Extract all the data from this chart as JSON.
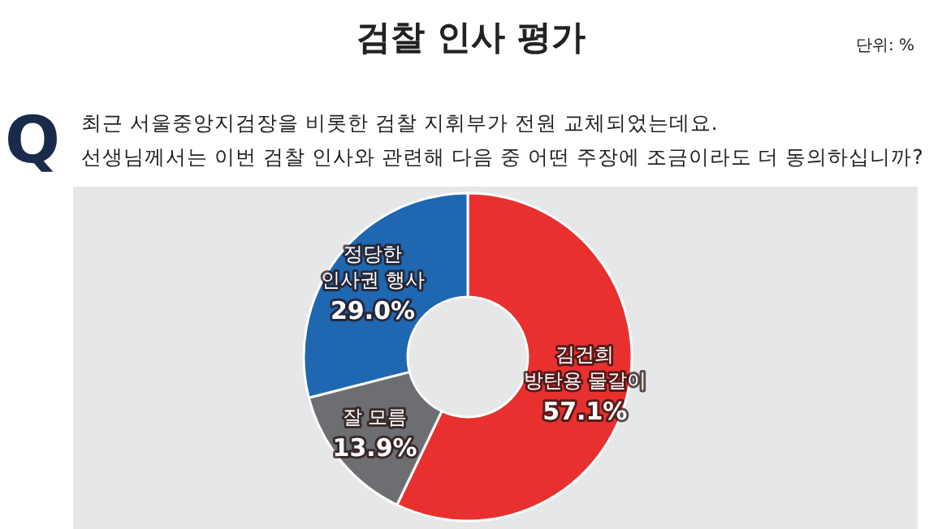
{
  "chart_data": {
    "type": "donut",
    "title": "검찰 인사 평가",
    "subtitle": "최근 서울중앙지검장을 비롯한 검찰 지휘부가 전원 교체되었는데요.\n선생님께서는 이번 검찰 인사와 관련해 다음 중 어떤 주장에 조금이라도 더 동의하십니까?",
    "annotations": [
      "단위: %",
      "Q"
    ],
    "categories": [
      "김건희\n방탄용 물갈이",
      "잘 모름",
      "정당한\n인사권 행사"
    ],
    "values": [
      57.1,
      13.9,
      29.0
    ],
    "colors": [
      "#e8312f",
      "#6d6e71",
      "#1f67b1"
    ],
    "value_labels": [
      "57.1%",
      "13.9%",
      "29.0%"
    ],
    "legend": false
  }
}
